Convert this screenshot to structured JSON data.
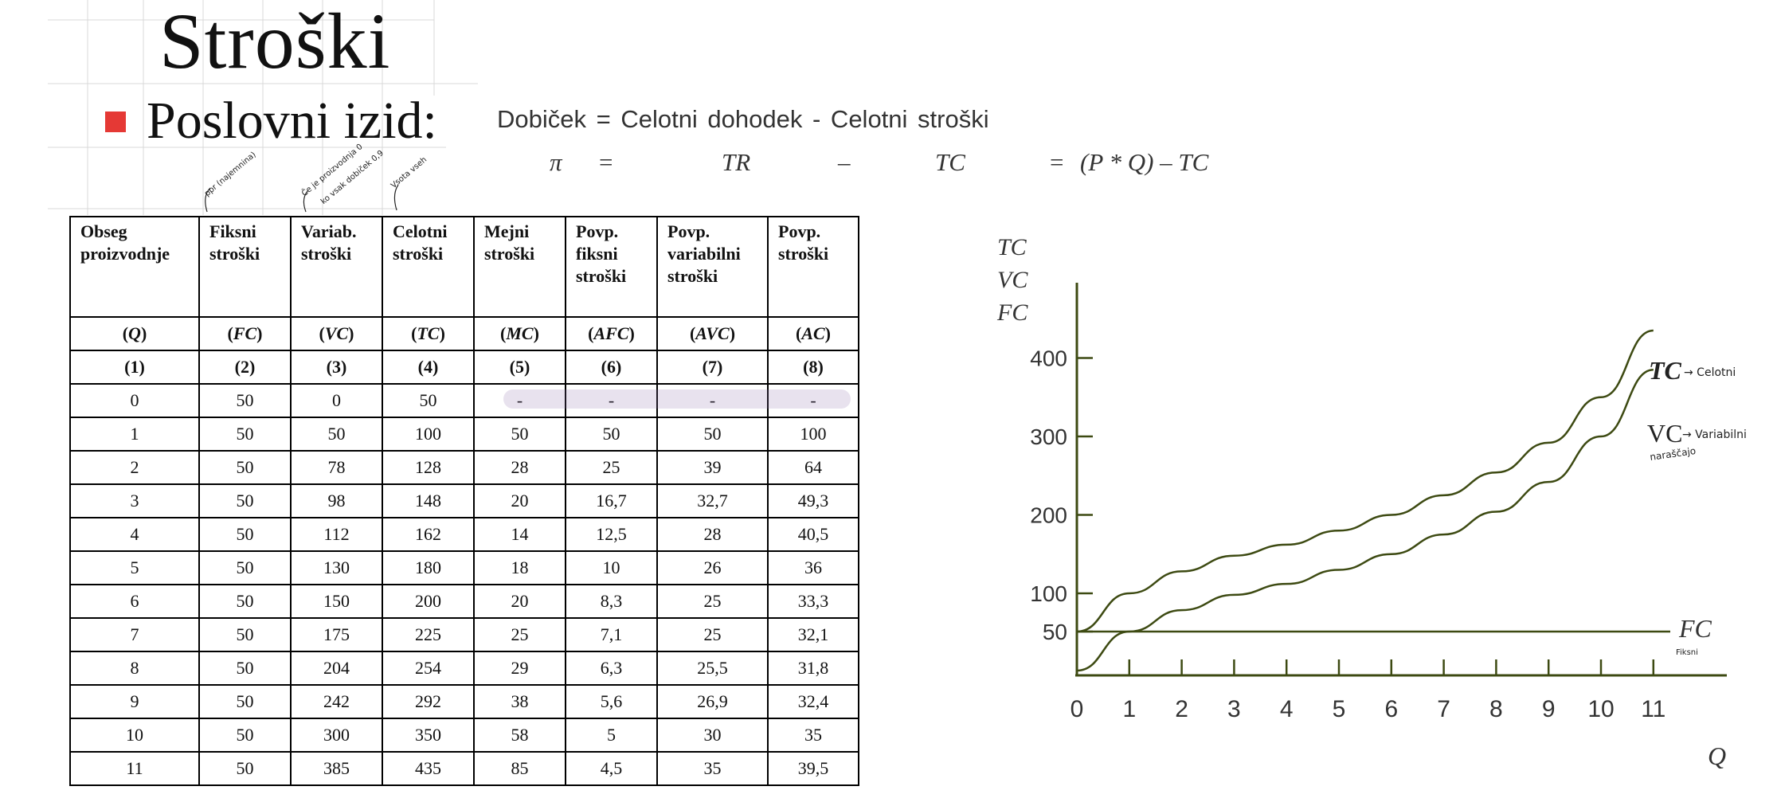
{
  "slide": {
    "title": "Stroški",
    "bullet": "Poslovni izid:",
    "bullet_color": "#e53935"
  },
  "formula": {
    "line1": "Dobiček =  Celotni  dohodek  -  Celotni stroški",
    "line2": {
      "pi": "π",
      "eq1": "=",
      "tr": "TR",
      "minus": "–",
      "tc": "TC",
      "eq2": "=",
      "rhs": "(P * Q) – TC"
    }
  },
  "annotations": {
    "fc_note": "ppr (najemnina)",
    "vc_note_1": "Če je proizvodnja 0",
    "vc_note_2": "ko vsak dobiček 0,9",
    "tc_note": "Vsota vseh"
  },
  "table": {
    "headers": [
      [
        "Obseg",
        "proizvodnje"
      ],
      [
        "Fiksni",
        "stroški"
      ],
      [
        "Variab.",
        "stroški"
      ],
      [
        "Celotni",
        "stroški"
      ],
      [
        "Mejni",
        "stroški"
      ],
      [
        "Povp.",
        "fiksni",
        "stroški"
      ],
      [
        "Povp.",
        "variabilni",
        "stroški"
      ],
      [
        "Povp.",
        "stroški"
      ]
    ],
    "symbols": [
      "(Q)",
      "(FC)",
      "(VC)",
      "(TC)",
      "(MC)",
      "(AFC)",
      "(AVC)",
      "(AC)"
    ],
    "numbers": [
      "(1)",
      "(2)",
      "(3)",
      "(4)",
      "(5)",
      "(6)",
      "(7)",
      "(8)"
    ],
    "rows": [
      [
        "0",
        "50",
        "0",
        "50",
        "-",
        "-",
        "-",
        "-"
      ],
      [
        "1",
        "50",
        "50",
        "100",
        "50",
        "50",
        "50",
        "100"
      ],
      [
        "2",
        "50",
        "78",
        "128",
        "28",
        "25",
        "39",
        "64"
      ],
      [
        "3",
        "50",
        "98",
        "148",
        "20",
        "16,7",
        "32,7",
        "49,3"
      ],
      [
        "4",
        "50",
        "112",
        "162",
        "14",
        "12,5",
        "28",
        "40,5"
      ],
      [
        "5",
        "50",
        "130",
        "180",
        "18",
        "10",
        "26",
        "36"
      ],
      [
        "6",
        "50",
        "150",
        "200",
        "20",
        "8,3",
        "25",
        "33,3"
      ],
      [
        "7",
        "50",
        "175",
        "225",
        "25",
        "7,1",
        "25",
        "32,1"
      ],
      [
        "8",
        "50",
        "204",
        "254",
        "29",
        "6,3",
        "25,5",
        "31,8"
      ],
      [
        "9",
        "50",
        "242",
        "292",
        "38",
        "5,6",
        "26,9",
        "32,4"
      ],
      [
        "10",
        "50",
        "300",
        "350",
        "58",
        "5",
        "30",
        "35"
      ],
      [
        "11",
        "50",
        "385",
        "435",
        "85",
        "4,5",
        "35",
        "39,5"
      ]
    ]
  },
  "chart_data": {
    "type": "line",
    "ylabel": [
      "TC",
      "VC",
      "FC"
    ],
    "xlabel": "Q",
    "x": [
      0,
      1,
      2,
      3,
      4,
      5,
      6,
      7,
      8,
      9,
      10,
      11
    ],
    "y_ticks": [
      50,
      100,
      200,
      300,
      400
    ],
    "x_ticks": [
      0,
      1,
      2,
      3,
      4,
      5,
      6,
      7,
      8,
      9,
      10,
      11
    ],
    "series": [
      {
        "name": "TC",
        "values": [
          50,
          100,
          128,
          148,
          162,
          180,
          200,
          225,
          254,
          292,
          350,
          435
        ]
      },
      {
        "name": "VC",
        "values": [
          0,
          50,
          78,
          98,
          112,
          130,
          150,
          175,
          204,
          242,
          300,
          385
        ]
      },
      {
        "name": "FC",
        "values": [
          50,
          50,
          50,
          50,
          50,
          50,
          50,
          50,
          50,
          50,
          50,
          50
        ]
      }
    ],
    "curve_labels": {
      "TC": "TC",
      "TC_note": "→ Celotni",
      "VC": "VC",
      "VC_note_1": "→ Variabilni",
      "VC_note_2": "naraščajo",
      "FC": "FC",
      "FC_note": "Fiksni"
    },
    "grid": false,
    "line_color": "#3d4a12"
  }
}
